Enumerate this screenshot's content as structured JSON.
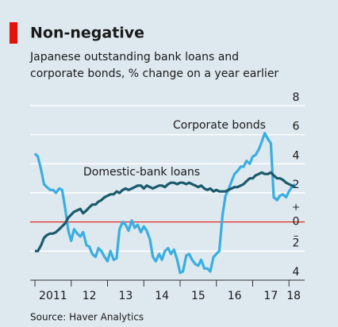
{
  "chart_data": {
    "type": "line",
    "title": "Non-negative",
    "subtitle": [
      "Japanese outstanding bank loans and",
      "corporate bonds, % change on a year earlier"
    ],
    "source": "Source: Haver Analytics",
    "annotations": [
      "+",
      "–"
    ],
    "x": [
      2011.0,
      2011.08,
      2011.17,
      2011.25,
      2011.33,
      2011.42,
      2011.5,
      2011.58,
      2011.67,
      2011.75,
      2011.83,
      2011.92,
      2012.0,
      2012.08,
      2012.17,
      2012.25,
      2012.33,
      2012.42,
      2012.5,
      2012.58,
      2012.67,
      2012.75,
      2012.83,
      2012.92,
      2013.0,
      2013.08,
      2013.17,
      2013.25,
      2013.33,
      2013.42,
      2013.5,
      2013.58,
      2013.67,
      2013.75,
      2013.83,
      2013.92,
      2014.0,
      2014.08,
      2014.17,
      2014.25,
      2014.33,
      2014.42,
      2014.5,
      2014.58,
      2014.67,
      2014.75,
      2014.83,
      2014.92,
      2015.0,
      2015.08,
      2015.17,
      2015.25,
      2015.33,
      2015.42,
      2015.5,
      2015.58,
      2015.67,
      2015.75,
      2015.83,
      2015.92,
      2016.0,
      2016.08,
      2016.17,
      2016.25,
      2016.33,
      2016.42,
      2016.5,
      2016.58,
      2016.67,
      2016.75,
      2016.83,
      2016.92,
      2017.0,
      2017.08,
      2017.17,
      2017.25,
      2017.33,
      2017.42,
      2017.5,
      2017.58,
      2017.67,
      2017.75,
      2017.83,
      2017.92,
      2018.0,
      2018.08,
      2018.17
    ],
    "series": [
      {
        "name": "Corporate bonds",
        "color": "#3aaee0",
        "values": [
          4.7,
          4.5,
          3.6,
          2.6,
          2.4,
          2.2,
          2.2,
          2.0,
          2.3,
          2.2,
          1.0,
          -0.6,
          -1.3,
          -0.5,
          -0.8,
          -1.0,
          -0.7,
          -1.6,
          -1.7,
          -2.2,
          -2.4,
          -1.8,
          -2.0,
          -2.4,
          -2.7,
          -2.0,
          -2.6,
          -2.5,
          -0.5,
          0.0,
          -0.2,
          -0.6,
          0.1,
          -0.4,
          -0.2,
          -0.7,
          -0.3,
          -0.6,
          -1.2,
          -2.4,
          -2.7,
          -2.2,
          -2.6,
          -2.0,
          -1.8,
          -2.2,
          -1.9,
          -2.6,
          -3.5,
          -3.4,
          -2.3,
          -2.2,
          -2.6,
          -2.9,
          -3.0,
          -2.6,
          -3.2,
          -3.2,
          -3.4,
          -2.4,
          -2.2,
          -2.0,
          0.5,
          1.8,
          2.2,
          2.8,
          3.3,
          3.5,
          3.8,
          3.8,
          4.2,
          4.0,
          4.5,
          4.6,
          5.0,
          5.5,
          6.1,
          5.7,
          5.4,
          1.7,
          1.5,
          1.8,
          1.9,
          1.7,
          2.1,
          2.4,
          2.6
        ]
      },
      {
        "name": "Domestic-bank loans",
        "color": "#1b5a6c",
        "values": [
          -2.0,
          -2.0,
          -1.6,
          -1.1,
          -0.9,
          -0.8,
          -0.8,
          -0.7,
          -0.5,
          -0.3,
          -0.1,
          0.3,
          0.5,
          0.7,
          0.8,
          0.9,
          0.6,
          0.8,
          1.0,
          1.2,
          1.2,
          1.4,
          1.5,
          1.7,
          1.8,
          1.9,
          1.9,
          2.1,
          2.0,
          2.2,
          2.3,
          2.2,
          2.3,
          2.4,
          2.5,
          2.5,
          2.3,
          2.5,
          2.4,
          2.3,
          2.4,
          2.5,
          2.5,
          2.4,
          2.6,
          2.7,
          2.7,
          2.6,
          2.7,
          2.7,
          2.6,
          2.7,
          2.6,
          2.5,
          2.4,
          2.5,
          2.3,
          2.2,
          2.3,
          2.1,
          2.2,
          2.1,
          2.1,
          2.1,
          2.2,
          2.3,
          2.4,
          2.4,
          2.5,
          2.6,
          2.8,
          3.0,
          3.0,
          3.2,
          3.3,
          3.4,
          3.3,
          3.3,
          3.4,
          3.2,
          3.0,
          3.0,
          2.9,
          2.7,
          2.6,
          2.5,
          2.4
        ]
      }
    ],
    "xlim": [
      2011,
      2018.17
    ],
    "xticks": [
      {
        "value": 2011,
        "label": "2011"
      },
      {
        "value": 2012,
        "label": "12"
      },
      {
        "value": 2013,
        "label": "13"
      },
      {
        "value": 2014,
        "label": "14"
      },
      {
        "value": 2015,
        "label": "15"
      },
      {
        "value": 2016,
        "label": "16"
      },
      {
        "value": 2017,
        "label": "17"
      },
      {
        "value": 2018,
        "label": "18"
      }
    ],
    "ylim": [
      -4,
      8
    ],
    "yticks": [
      {
        "value": -4,
        "label": "4"
      },
      {
        "value": -2,
        "label": "2"
      },
      0,
      2,
      4,
      6,
      8
    ],
    "grid": true
  }
}
